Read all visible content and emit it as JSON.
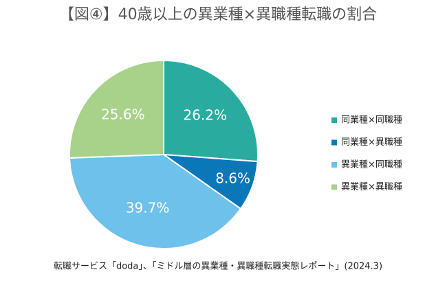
{
  "chart_data": {
    "type": "pie",
    "title": "【図④】40歳以上の異業種×異職種転職の割合",
    "categories": [
      "同業種×同職種",
      "同業種×異職種",
      "異業種×同職種",
      "異業種×異職種"
    ],
    "values": [
      26.2,
      8.6,
      39.7,
      25.6
    ],
    "value_labels": [
      "26.2%",
      "8.6%",
      "39.7%",
      "25.6%"
    ],
    "colors": [
      "#2aab9f",
      "#0a77b8",
      "#6ec1ea",
      "#a8d28a"
    ],
    "legend": "right",
    "source": "転職サービス「doda」、「ミドル層の異業種・異職種転職実態レポート」(2024.3)"
  }
}
